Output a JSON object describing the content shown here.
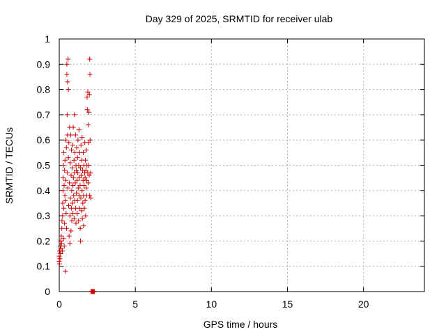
{
  "chart_data": {
    "type": "scatter",
    "title": "Day 329 of 2025, SRMTID for receiver ulab",
    "xlabel": "GPS time / hours",
    "ylabel": "SRMTID / TECUs",
    "xlim": [
      0,
      24
    ],
    "ylim": [
      0,
      1
    ],
    "xticks": [
      0,
      5,
      10,
      15,
      20
    ],
    "yticks": [
      0,
      0.1,
      0.2,
      0.3,
      0.4,
      0.5,
      0.6,
      0.7,
      0.8,
      0.9,
      1
    ],
    "ytick_labels": [
      "0",
      "0.1",
      "0.2",
      "0.3",
      "0.4",
      "0.5",
      "0.6",
      "0.7",
      "0.8",
      "0.9",
      "1"
    ],
    "grid": true,
    "marker": "plus",
    "color": "#cc0000",
    "points": [
      [
        0.0,
        0.12
      ],
      [
        0.0,
        0.14
      ],
      [
        0.02,
        0.11
      ],
      [
        0.03,
        0.16
      ],
      [
        0.05,
        0.13
      ],
      [
        0.07,
        0.18
      ],
      [
        0.08,
        0.15
      ],
      [
        0.1,
        0.2
      ],
      [
        0.12,
        0.17
      ],
      [
        0.13,
        0.22
      ],
      [
        0.15,
        0.19
      ],
      [
        0.17,
        0.25
      ],
      [
        0.18,
        0.28
      ],
      [
        0.2,
        0.16
      ],
      [
        0.22,
        0.3
      ],
      [
        0.23,
        0.35
      ],
      [
        0.25,
        0.4
      ],
      [
        0.25,
        0.45
      ],
      [
        0.27,
        0.5
      ],
      [
        0.28,
        0.21
      ],
      [
        0.3,
        0.33
      ],
      [
        0.3,
        0.55
      ],
      [
        0.32,
        0.42
      ],
      [
        0.33,
        0.18
      ],
      [
        0.35,
        0.48
      ],
      [
        0.35,
        0.27
      ],
      [
        0.37,
        0.38
      ],
      [
        0.38,
        0.52
      ],
      [
        0.4,
        0.08
      ],
      [
        0.4,
        0.36
      ],
      [
        0.42,
        0.6
      ],
      [
        0.43,
        0.44
      ],
      [
        0.45,
        0.31
      ],
      [
        0.47,
        0.57
      ],
      [
        0.48,
        0.25
      ],
      [
        0.5,
        0.9
      ],
      [
        0.5,
        0.86
      ],
      [
        0.52,
        0.7
      ],
      [
        0.53,
        0.47
      ],
      [
        0.55,
        0.83
      ],
      [
        0.55,
        0.62
      ],
      [
        0.57,
        0.41
      ],
      [
        0.58,
        0.92
      ],
      [
        0.6,
        0.8
      ],
      [
        0.6,
        0.53
      ],
      [
        0.62,
        0.34
      ],
      [
        0.63,
        0.59
      ],
      [
        0.65,
        0.22
      ],
      [
        0.67,
        0.43
      ],
      [
        0.68,
        0.65
      ],
      [
        0.7,
        0.3
      ],
      [
        0.7,
        0.19
      ],
      [
        0.72,
        0.51
      ],
      [
        0.73,
        0.37
      ],
      [
        0.75,
        0.62
      ],
      [
        0.77,
        0.24
      ],
      [
        0.78,
        0.46
      ],
      [
        0.8,
        0.33
      ],
      [
        0.8,
        0.56
      ],
      [
        0.82,
        0.4
      ],
      [
        0.83,
        0.28
      ],
      [
        0.85,
        0.49
      ],
      [
        0.87,
        0.35
      ],
      [
        0.88,
        0.58
      ],
      [
        0.9,
        0.42
      ],
      [
        0.9,
        0.31
      ],
      [
        0.92,
        0.65
      ],
      [
        0.93,
        0.45
      ],
      [
        0.95,
        0.38
      ],
      [
        0.97,
        0.52
      ],
      [
        0.98,
        0.29
      ],
      [
        1.0,
        0.47
      ],
      [
        1.0,
        0.7
      ],
      [
        1.02,
        0.36
      ],
      [
        1.03,
        0.55
      ],
      [
        1.05,
        0.43
      ],
      [
        1.07,
        0.62
      ],
      [
        1.08,
        0.33
      ],
      [
        1.1,
        0.5
      ],
      [
        1.1,
        0.27
      ],
      [
        1.12,
        0.48
      ],
      [
        1.13,
        0.39
      ],
      [
        1.15,
        0.57
      ],
      [
        1.17,
        0.44
      ],
      [
        1.18,
        0.31
      ],
      [
        1.2,
        0.53
      ],
      [
        1.2,
        0.36
      ],
      [
        1.22,
        0.47
      ],
      [
        1.23,
        0.6
      ],
      [
        1.25,
        0.41
      ],
      [
        1.27,
        0.28
      ],
      [
        1.28,
        0.5
      ],
      [
        1.3,
        0.38
      ],
      [
        1.3,
        0.64
      ],
      [
        1.32,
        0.45
      ],
      [
        1.33,
        0.33
      ],
      [
        1.35,
        0.55
      ],
      [
        1.37,
        0.42
      ],
      [
        1.38,
        0.25
      ],
      [
        1.4,
        0.49
      ],
      [
        1.4,
        0.2
      ],
      [
        1.42,
        0.37
      ],
      [
        1.43,
        0.58
      ],
      [
        1.45,
        0.46
      ],
      [
        1.47,
        0.32
      ],
      [
        1.48,
        0.52
      ],
      [
        1.5,
        0.4
      ],
      [
        1.5,
        0.61
      ],
      [
        1.52,
        0.29
      ],
      [
        1.53,
        0.48
      ],
      [
        1.55,
        0.35
      ],
      [
        1.57,
        0.44
      ],
      [
        1.58,
        0.55
      ],
      [
        1.6,
        0.38
      ],
      [
        1.6,
        0.26
      ],
      [
        1.62,
        0.5
      ],
      [
        1.63,
        0.42
      ],
      [
        1.65,
        0.33
      ],
      [
        1.67,
        0.47
      ],
      [
        1.68,
        0.59
      ],
      [
        1.7,
        0.36
      ],
      [
        1.7,
        0.45
      ],
      [
        1.72,
        0.52
      ],
      [
        1.73,
        0.3
      ],
      [
        1.75,
        0.48
      ],
      [
        1.77,
        0.41
      ],
      [
        1.78,
        0.56
      ],
      [
        1.8,
        0.44
      ],
      [
        1.8,
        0.38
      ],
      [
        1.82,
        0.5
      ],
      [
        1.83,
        0.77
      ],
      [
        1.85,
        0.72
      ],
      [
        1.87,
        0.47
      ],
      [
        1.88,
        0.79
      ],
      [
        1.9,
        0.43
      ],
      [
        1.9,
        0.66
      ],
      [
        1.92,
        0.59
      ],
      [
        1.93,
        0.5
      ],
      [
        1.95,
        0.71
      ],
      [
        1.97,
        0.46
      ],
      [
        1.98,
        0.78
      ],
      [
        2.0,
        0.38
      ],
      [
        2.0,
        0.92
      ],
      [
        2.02,
        0.86
      ],
      [
        2.03,
        0.6
      ],
      [
        2.05,
        0.47
      ],
      [
        2.07,
        0.37
      ]
    ],
    "zero_points_x": [
      2.1,
      2.15,
      2.2,
      2.25,
      2.3
    ]
  }
}
